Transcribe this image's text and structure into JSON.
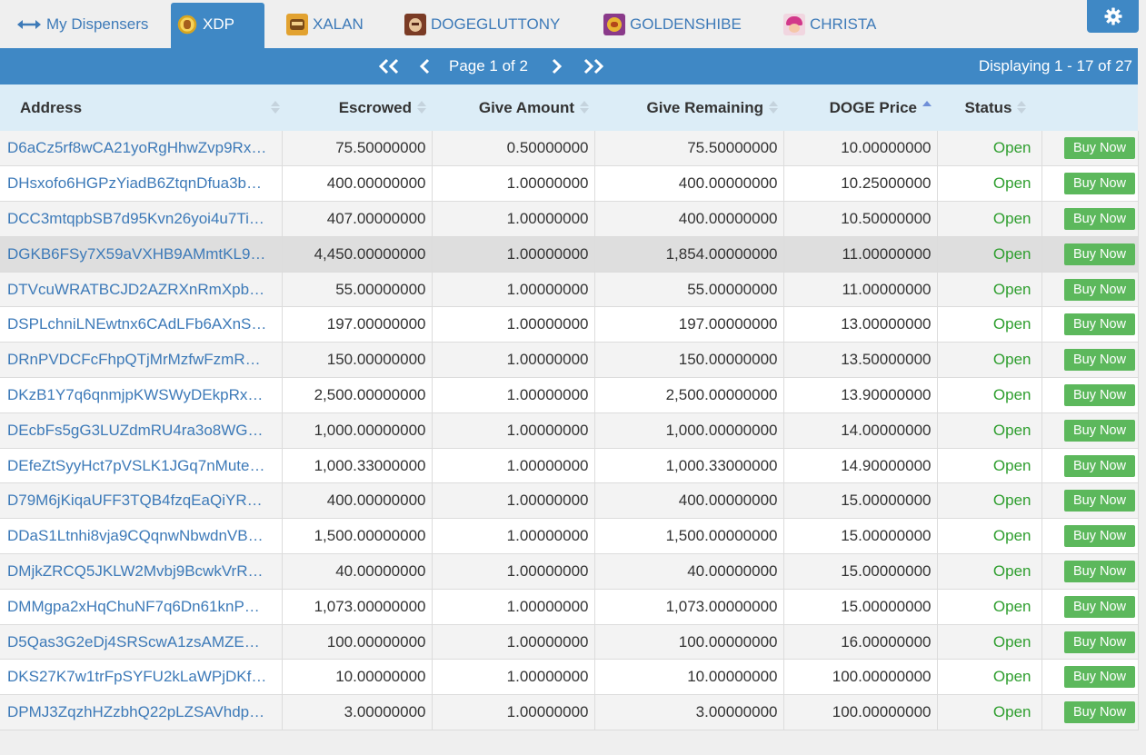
{
  "tabs": [
    {
      "label": "My Dispensers",
      "icon": "left-right-arrows-icon",
      "active": false
    },
    {
      "label": "XDP",
      "icon": "xdp-coin-icon",
      "active": true
    },
    {
      "label": "XALAN",
      "icon": "xalan-token-icon",
      "active": false
    },
    {
      "label": "DOGEGLUTTONY",
      "icon": "dogegluttony-token-icon",
      "active": false
    },
    {
      "label": "GOLDENSHIBE",
      "icon": "goldenshibe-token-icon",
      "active": false
    },
    {
      "label": "CHRISTA",
      "icon": "christa-token-icon",
      "active": false
    }
  ],
  "settings": {
    "icon": "gear-icon"
  },
  "pager": {
    "page_text": "Page 1 of 2",
    "display_text": "Displaying 1 - 17 of 27"
  },
  "table": {
    "columns": [
      "Address",
      "Escrowed",
      "Give Amount",
      "Give Remaining",
      "DOGE Price",
      "Status"
    ],
    "sorted_column": "DOGE Price",
    "sort_direction": "asc",
    "highlight_row": 3,
    "buy_label": "Buy Now",
    "rows": [
      {
        "address": "D6aCz5rf8wCA21yoRgHhwZvp9Rx…",
        "escrowed": "75.50000000",
        "give_amount": "0.50000000",
        "give_remaining": "75.50000000",
        "price": "10.00000000",
        "status": "Open"
      },
      {
        "address": "DHsxofo6HGPzYiadB6ZtqnDfua3b…",
        "escrowed": "400.00000000",
        "give_amount": "1.00000000",
        "give_remaining": "400.00000000",
        "price": "10.25000000",
        "status": "Open"
      },
      {
        "address": "DCC3mtqpbSB7d95Kvn26yoi4u7Ti…",
        "escrowed": "407.00000000",
        "give_amount": "1.00000000",
        "give_remaining": "400.00000000",
        "price": "10.50000000",
        "status": "Open"
      },
      {
        "address": "DGKB6FSy7X59aVXHB9AMmtKL9…",
        "escrowed": "4,450.00000000",
        "give_amount": "1.00000000",
        "give_remaining": "1,854.00000000",
        "price": "11.00000000",
        "status": "Open"
      },
      {
        "address": "DTVcuWRATBCJD2AZRXnRmXpb…",
        "escrowed": "55.00000000",
        "give_amount": "1.00000000",
        "give_remaining": "55.00000000",
        "price": "11.00000000",
        "status": "Open"
      },
      {
        "address": "DSPLchniLNEwtnx6CAdLFb6AXnS…",
        "escrowed": "197.00000000",
        "give_amount": "1.00000000",
        "give_remaining": "197.00000000",
        "price": "13.00000000",
        "status": "Open"
      },
      {
        "address": "DRnPVDCFcFhpQTjMrMzfwFzmR…",
        "escrowed": "150.00000000",
        "give_amount": "1.00000000",
        "give_remaining": "150.00000000",
        "price": "13.50000000",
        "status": "Open"
      },
      {
        "address": "DKzB1Y7q6qnmjpKWSWyDEkpRx…",
        "escrowed": "2,500.00000000",
        "give_amount": "1.00000000",
        "give_remaining": "2,500.00000000",
        "price": "13.90000000",
        "status": "Open"
      },
      {
        "address": "DEcbFs5gG3LUZdmRU4ra3o8WG…",
        "escrowed": "1,000.00000000",
        "give_amount": "1.00000000",
        "give_remaining": "1,000.00000000",
        "price": "14.00000000",
        "status": "Open"
      },
      {
        "address": "DEfeZtSyyHct7pVSLK1JGq7nMute…",
        "escrowed": "1,000.33000000",
        "give_amount": "1.00000000",
        "give_remaining": "1,000.33000000",
        "price": "14.90000000",
        "status": "Open"
      },
      {
        "address": "D79M6jKiqaUFF3TQB4fzqEaQiYR…",
        "escrowed": "400.00000000",
        "give_amount": "1.00000000",
        "give_remaining": "400.00000000",
        "price": "15.00000000",
        "status": "Open"
      },
      {
        "address": "DDaS1Ltnhi8vja9CQqnwNbwdnVB…",
        "escrowed": "1,500.00000000",
        "give_amount": "1.00000000",
        "give_remaining": "1,500.00000000",
        "price": "15.00000000",
        "status": "Open"
      },
      {
        "address": "DMjkZRCQ5JKLW2Mvbj9BcwkVrR…",
        "escrowed": "40.00000000",
        "give_amount": "1.00000000",
        "give_remaining": "40.00000000",
        "price": "15.00000000",
        "status": "Open"
      },
      {
        "address": "DMMgpa2xHqChuNF7q6Dn61knP…",
        "escrowed": "1,073.00000000",
        "give_amount": "1.00000000",
        "give_remaining": "1,073.00000000",
        "price": "15.00000000",
        "status": "Open"
      },
      {
        "address": "D5Qas3G2eDj4SRScwA1zsAMZE…",
        "escrowed": "100.00000000",
        "give_amount": "1.00000000",
        "give_remaining": "100.00000000",
        "price": "16.00000000",
        "status": "Open"
      },
      {
        "address": "DKS27K7w1trFpSYFU2kLaWPjDKf…",
        "escrowed": "10.00000000",
        "give_amount": "1.00000000",
        "give_remaining": "10.00000000",
        "price": "100.00000000",
        "status": "Open"
      },
      {
        "address": "DPMJ3ZqzhHZzbhQ22pLZSAVhdp…",
        "escrowed": "3.00000000",
        "give_amount": "1.00000000",
        "give_remaining": "3.00000000",
        "price": "100.00000000",
        "status": "Open"
      }
    ]
  },
  "colors": {
    "header_blue": "#3f88c5",
    "link_blue": "#3d7ab8",
    "table_head": "#dcedf7",
    "status_green": "#2e9e2e",
    "button_green": "#5cb85c"
  }
}
